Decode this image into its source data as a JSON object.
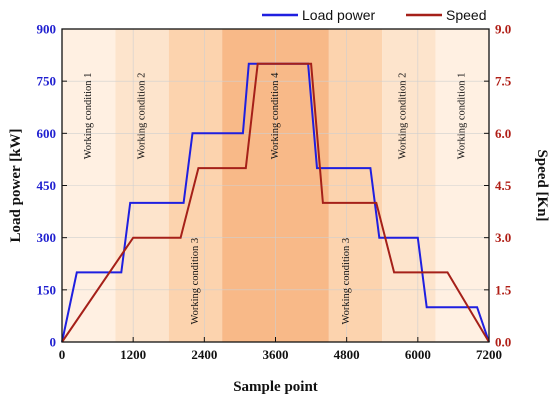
{
  "chart_data": {
    "type": "line",
    "xlabel": "Sample point",
    "ylabel_left": "Load power [kW]",
    "ylabel_right": "Speed [Kn]",
    "xlim": [
      0,
      7200
    ],
    "ylim_left": [
      0,
      900
    ],
    "ylim_right": [
      0,
      9.0
    ],
    "x_ticks": [
      "0",
      "1200",
      "2400",
      "3600",
      "4800",
      "6000",
      "7200"
    ],
    "y_ticks_left": [
      "0",
      "150",
      "300",
      "450",
      "600",
      "750",
      "900"
    ],
    "y_ticks_right": [
      "0.0",
      "1.5",
      "3.0",
      "4.5",
      "6.0",
      "7.5",
      "9.0"
    ],
    "legend": {
      "placement": "top-right",
      "entries": [
        "Load power",
        "Speed"
      ]
    },
    "colors": {
      "load_power": "#1f1fe0",
      "speed": "#a52019"
    },
    "series": [
      {
        "name": "Load power",
        "axis": "left",
        "x": [
          0,
          250,
          1000,
          1150,
          2050,
          2200,
          3050,
          3150,
          4150,
          4300,
          5200,
          5350,
          6000,
          6150,
          7000,
          7200
        ],
        "y": [
          0,
          200,
          200,
          400,
          400,
          600,
          600,
          800,
          800,
          500,
          500,
          300,
          300,
          100,
          100,
          0
        ]
      },
      {
        "name": "Speed",
        "axis": "right",
        "x": [
          0,
          1200,
          2000,
          2300,
          3100,
          3300,
          4200,
          4400,
          5300,
          5600,
          6500,
          7200
        ],
        "y": [
          0,
          3.0,
          3.0,
          5.0,
          5.0,
          8.0,
          8.0,
          4.0,
          4.0,
          2.0,
          2.0,
          0
        ]
      }
    ],
    "zones": [
      {
        "x0": 0,
        "x1": 900,
        "shade": 0,
        "label": "Working condition 1",
        "label_x": 450,
        "label_y": 650
      },
      {
        "x0": 900,
        "x1": 1800,
        "shade": 1,
        "label": "Working condition 2",
        "label_x": 1350,
        "label_y": 650
      },
      {
        "x0": 1800,
        "x1": 2700,
        "shade": 2,
        "label": "Working condition 3",
        "label_x": 2250,
        "label_y": 175
      },
      {
        "x0": 2700,
        "x1": 4500,
        "shade": 3,
        "label": "Working condition 4",
        "label_x": 3600,
        "label_y": 650
      },
      {
        "x0": 4500,
        "x1": 5400,
        "shade": 2,
        "label": "Working condition 3",
        "label_x": 4800,
        "label_y": 175
      },
      {
        "x0": 5400,
        "x1": 6300,
        "shade": 1,
        "label": "Working condition 2",
        "label_x": 5750,
        "label_y": 650
      },
      {
        "x0": 6300,
        "x1": 7200,
        "shade": 0,
        "label": "Working condition 1",
        "label_x": 6750,
        "label_y": 650
      }
    ],
    "zone_shades": [
      "#fff0e2",
      "#fde4cc",
      "#fcd3ae",
      "#f8b988"
    ],
    "grid": true
  }
}
